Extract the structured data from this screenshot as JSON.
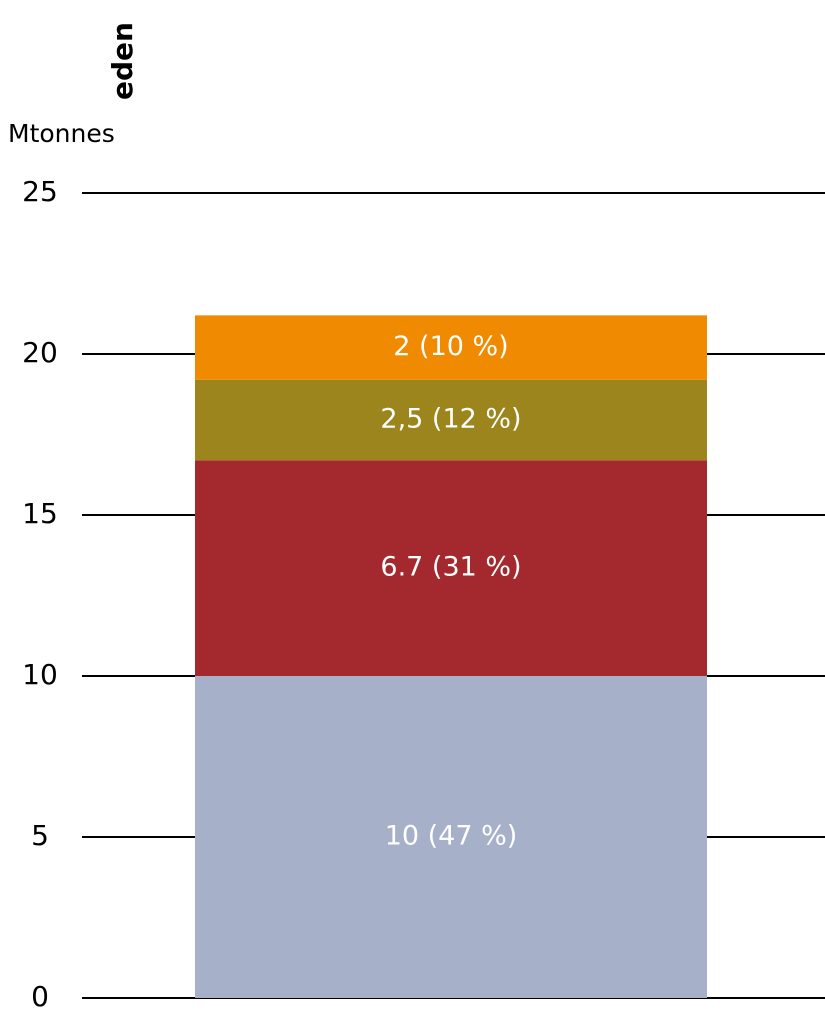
{
  "chart_data": {
    "type": "stacked-bar",
    "title": "eden",
    "y_label": "Mtonnes",
    "categories": [
      null
    ],
    "series": [
      {
        "color": "#a6b1c9",
        "values": [
          10
        ],
        "value_labels": [
          "10 (47 %)"
        ]
      },
      {
        "color": "#a4292f",
        "values": [
          6.7
        ],
        "value_labels": [
          "6.7 (31 %)"
        ]
      },
      {
        "color": "#9b851c",
        "values": [
          2.5
        ],
        "value_labels": [
          "2,5 (12 %)"
        ]
      },
      {
        "color": "#f08a00",
        "values": [
          2
        ],
        "value_labels": [
          "2 (10 %)"
        ]
      }
    ],
    "ylim": [
      0,
      25
    ],
    "yticks": [
      0,
      5,
      10,
      15,
      20,
      25
    ],
    "grid": true
  }
}
